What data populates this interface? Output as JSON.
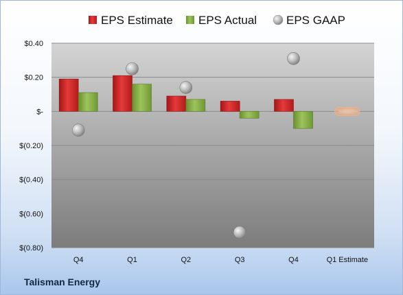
{
  "company": "Talisman Energy",
  "colors": {
    "estimate": "#d42a2a",
    "actual": "#86b043",
    "gaap": "#b9b9b9",
    "q1_estimate_marker": "#f5b183"
  },
  "chart_data": {
    "type": "bar",
    "categories": [
      "Q4",
      "Q1",
      "Q2",
      "Q3",
      "Q4",
      "Q1 Estimate"
    ],
    "series": [
      {
        "name": "EPS Estimate",
        "type": "bar",
        "values": [
          0.19,
          0.21,
          0.09,
          0.06,
          0.07,
          0.0
        ]
      },
      {
        "name": "EPS Actual",
        "type": "bar",
        "values": [
          0.11,
          0.16,
          0.07,
          -0.04,
          -0.1,
          null
        ]
      },
      {
        "name": "EPS GAAP",
        "type": "scatter",
        "values": [
          -0.11,
          0.25,
          0.14,
          -0.71,
          0.31,
          null
        ]
      }
    ],
    "ylim": [
      -0.8,
      0.4
    ],
    "yticks": [
      0.4,
      0.2,
      0,
      -0.2,
      -0.4,
      -0.6,
      -0.8
    ],
    "ytick_labels": [
      "$0.40",
      "$0.20",
      "$-",
      "$(0.20)",
      "$(0.40)",
      "$(0.60)",
      "$(0.80)"
    ],
    "grid": true,
    "legend": "top"
  }
}
